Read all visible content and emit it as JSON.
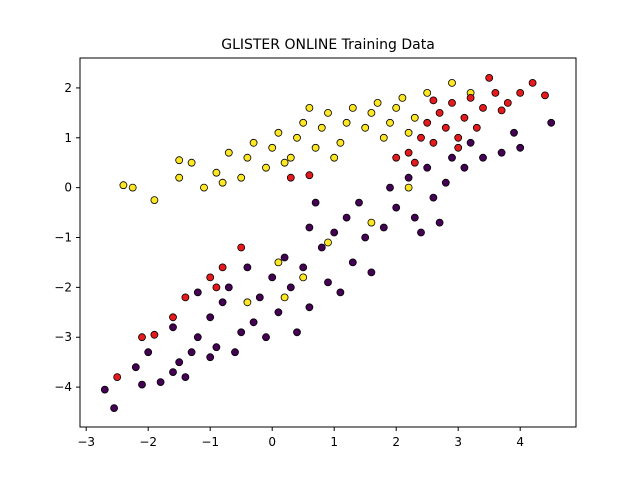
{
  "chart_data": {
    "type": "scatter",
    "title": "GLISTER ONLINE Training Data",
    "xlabel": "",
    "ylabel": "",
    "xlim": [
      -3.1,
      4.9
    ],
    "ylim": [
      -4.8,
      2.6
    ],
    "xticks": [
      -3,
      -2,
      -1,
      0,
      1,
      2,
      3,
      4
    ],
    "yticks": [
      -4,
      -3,
      -2,
      -1,
      0,
      1,
      2
    ],
    "grid": false,
    "legend": "none",
    "series": [
      {
        "color": "#440154",
        "points": [
          [
            -2.7,
            -4.05
          ],
          [
            -2.55,
            -4.42
          ],
          [
            -2.1,
            -3.95
          ],
          [
            -2.2,
            -3.6
          ],
          [
            -1.8,
            -3.9
          ],
          [
            -1.6,
            -3.7
          ],
          [
            -1.5,
            -3.5
          ],
          [
            -2.0,
            -3.3
          ],
          [
            -1.4,
            -3.8
          ],
          [
            -1.0,
            -3.4
          ],
          [
            -0.9,
            -3.2
          ],
          [
            -1.2,
            -3.0
          ],
          [
            -0.6,
            -3.3
          ],
          [
            -0.5,
            -2.9
          ],
          [
            -1.6,
            -2.8
          ],
          [
            -1.0,
            -2.6
          ],
          [
            -0.3,
            -2.7
          ],
          [
            0.1,
            -2.5
          ],
          [
            -0.8,
            -2.3
          ],
          [
            -0.2,
            -2.2
          ],
          [
            0.3,
            -2.0
          ],
          [
            0.6,
            -2.4
          ],
          [
            -1.2,
            -2.1
          ],
          [
            0.0,
            -1.8
          ],
          [
            0.5,
            -1.6
          ],
          [
            0.9,
            -1.9
          ],
          [
            0.2,
            -1.4
          ],
          [
            0.8,
            -1.2
          ],
          [
            1.3,
            -1.5
          ],
          [
            -0.4,
            -1.6
          ],
          [
            1.0,
            -0.9
          ],
          [
            1.5,
            -1.0
          ],
          [
            0.6,
            -0.8
          ],
          [
            1.2,
            -0.6
          ],
          [
            1.8,
            -0.8
          ],
          [
            2.0,
            -0.4
          ],
          [
            1.4,
            -0.3
          ],
          [
            2.3,
            -0.6
          ],
          [
            1.9,
            0.0
          ],
          [
            2.6,
            -0.2
          ],
          [
            2.2,
            0.2
          ],
          [
            2.8,
            0.1
          ],
          [
            2.5,
            0.4
          ],
          [
            3.1,
            0.4
          ],
          [
            3.4,
            0.6
          ],
          [
            2.9,
            0.6
          ],
          [
            3.7,
            0.7
          ],
          [
            3.2,
            0.9
          ],
          [
            4.0,
            0.8
          ],
          [
            4.5,
            1.3
          ],
          [
            3.9,
            1.1
          ],
          [
            2.4,
            -0.9
          ],
          [
            1.6,
            -1.7
          ],
          [
            0.4,
            -2.9
          ],
          [
            -0.1,
            -3.0
          ],
          [
            -1.3,
            -3.3
          ],
          [
            -0.7,
            -2.0
          ],
          [
            1.1,
            -2.1
          ],
          [
            0.7,
            -0.3
          ],
          [
            2.7,
            -0.7
          ]
        ]
      },
      {
        "color": "#fde725",
        "points": [
          [
            -2.4,
            0.05
          ],
          [
            -2.25,
            0.0
          ],
          [
            -1.9,
            -0.25
          ],
          [
            -1.5,
            0.2
          ],
          [
            -1.3,
            0.5
          ],
          [
            -1.1,
            0.0
          ],
          [
            -0.9,
            0.3
          ],
          [
            -0.7,
            0.7
          ],
          [
            -0.5,
            0.2
          ],
          [
            -0.3,
            0.9
          ],
          [
            -0.1,
            0.4
          ],
          [
            0.1,
            1.1
          ],
          [
            0.3,
            0.6
          ],
          [
            0.5,
            1.3
          ],
          [
            0.7,
            0.8
          ],
          [
            0.9,
            1.5
          ],
          [
            1.1,
            0.9
          ],
          [
            1.3,
            1.6
          ],
          [
            1.5,
            1.2
          ],
          [
            1.7,
            1.7
          ],
          [
            1.9,
            1.3
          ],
          [
            2.1,
            1.8
          ],
          [
            2.3,
            1.4
          ],
          [
            2.5,
            1.9
          ],
          [
            2.9,
            2.1
          ],
          [
            3.2,
            1.9
          ],
          [
            -1.5,
            0.55
          ],
          [
            -0.8,
            0.1
          ],
          [
            0.0,
            0.8
          ],
          [
            0.4,
            1.0
          ],
          [
            0.8,
            1.2
          ],
          [
            1.2,
            1.3
          ],
          [
            1.6,
            1.5
          ],
          [
            2.0,
            1.6
          ],
          [
            1.0,
            0.6
          ],
          [
            0.2,
            0.5
          ],
          [
            -0.4,
            0.6
          ],
          [
            1.8,
            1.0
          ],
          [
            0.6,
            1.6
          ],
          [
            2.2,
            1.1
          ],
          [
            0.1,
            -1.5
          ],
          [
            0.2,
            -2.2
          ],
          [
            0.5,
            -1.8
          ],
          [
            1.6,
            -0.7
          ],
          [
            2.2,
            0.0
          ],
          [
            0.9,
            -1.1
          ],
          [
            -0.4,
            -2.3
          ]
        ]
      },
      {
        "color": "#e41a1c",
        "points": [
          [
            2.2,
            0.7
          ],
          [
            2.4,
            1.0
          ],
          [
            2.5,
            1.3
          ],
          [
            2.6,
            0.9
          ],
          [
            2.7,
            1.5
          ],
          [
            2.8,
            1.2
          ],
          [
            2.9,
            1.7
          ],
          [
            3.0,
            1.0
          ],
          [
            3.1,
            1.4
          ],
          [
            3.2,
            1.8
          ],
          [
            3.3,
            1.2
          ],
          [
            3.4,
            1.6
          ],
          [
            3.5,
            2.2
          ],
          [
            3.6,
            1.9
          ],
          [
            3.8,
            1.7
          ],
          [
            4.0,
            1.9
          ],
          [
            4.2,
            2.1
          ],
          [
            4.4,
            1.85
          ],
          [
            3.0,
            0.8
          ],
          [
            2.3,
            0.5
          ],
          [
            2.0,
            0.6
          ],
          [
            0.3,
            0.2
          ],
          [
            0.6,
            0.25
          ],
          [
            -1.0,
            -1.8
          ],
          [
            -0.9,
            -2.0
          ],
          [
            -0.8,
            -1.6
          ],
          [
            -1.4,
            -2.2
          ],
          [
            -1.6,
            -2.6
          ],
          [
            -2.1,
            -3.0
          ],
          [
            -2.5,
            -3.8
          ],
          [
            -1.9,
            -2.95
          ],
          [
            -0.5,
            -1.2
          ],
          [
            2.6,
            1.75
          ],
          [
            3.7,
            1.55
          ]
        ]
      }
    ]
  }
}
